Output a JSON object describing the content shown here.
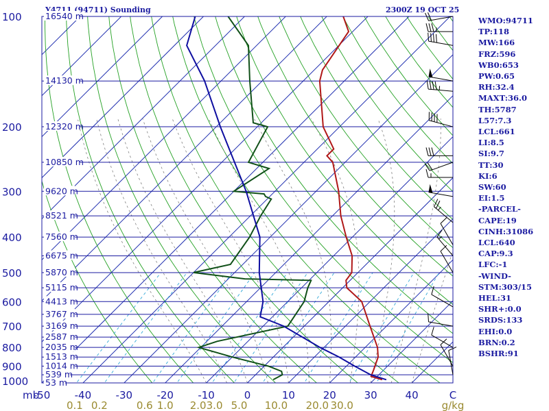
{
  "header": {
    "station": "Y4711 (94711) Sounding",
    "datetime": "2300Z 19 OCT 25"
  },
  "indices": [
    "WMO:94711",
    "TP:118",
    "MW:166",
    "FRZ:596",
    "WB0:653",
    "PW:0.65",
    "RH:32.4",
    "MAXT:36.0",
    "TH:5787",
    "L57:7.3",
    "LCL:661",
    "LI:8.5",
    "SI:9.7",
    "TT:30",
    "KI:6",
    "SW:60",
    "EI:1.5",
    "-PARCEL-",
    "CAPE:19",
    "CINH:31086",
    "LCL:640",
    "CAP:9.3",
    "LFC:-1",
    "-WIND-",
    "STM:303/15",
    "HEL:31",
    "SHR+:0.0",
    "SRDS:133",
    "EHI:0.0",
    "BRN:0.2",
    "BSHR:91"
  ],
  "chart_data": {
    "type": "line",
    "title": "Y4711 (94711) Sounding 2300Z 19 OCT 25",
    "ylabel": "mb",
    "xlabel": "C",
    "xlim": [
      -50,
      50
    ],
    "plim": [
      100,
      1000
    ],
    "pressure_ticks": [
      {
        "p": 100,
        "label": "100"
      },
      {
        "p": 200,
        "label": "200"
      },
      {
        "p": 300,
        "label": "300"
      },
      {
        "p": 400,
        "label": "400"
      },
      {
        "p": 500,
        "label": "500"
      },
      {
        "p": 600,
        "label": "600"
      },
      {
        "p": 700,
        "label": "700"
      },
      {
        "p": 800,
        "label": "800"
      },
      {
        "p": 900,
        "label": "900"
      },
      {
        "p": 1000,
        "label": "1000"
      }
    ],
    "temp_ticks": [
      {
        "t": -50,
        "label": "-50"
      },
      {
        "t": -40,
        "label": "-40"
      },
      {
        "t": -30,
        "label": "-30"
      },
      {
        "t": -20,
        "label": "-20"
      },
      {
        "t": -10,
        "label": "-10"
      },
      {
        "t": 0,
        "label": "0"
      },
      {
        "t": 10,
        "label": "10"
      },
      {
        "t": 20,
        "label": "20"
      },
      {
        "t": 30,
        "label": "30"
      },
      {
        "t": 40,
        "label": "40"
      },
      {
        "t": 50,
        "label": "C"
      }
    ],
    "mixing_ratio_label": "g/kg",
    "mixing_ratio_ticks": [
      {
        "label": "0.1",
        "t": -42
      },
      {
        "label": "0.2",
        "t": -36
      },
      {
        "label": "0.6",
        "t": -25
      },
      {
        "label": "1.0",
        "t": -20
      },
      {
        "label": "2.0",
        "t": -12
      },
      {
        "label": "3.0",
        "t": -8
      },
      {
        "label": "5.0",
        "t": -2
      },
      {
        "label": "10.0",
        "t": 7
      },
      {
        "label": "20.0",
        "t": 17
      },
      {
        "label": "30.0",
        "t": 23
      }
    ],
    "heights": [
      {
        "p": 100,
        "label": "16540 m"
      },
      {
        "p": 150,
        "label": "14130 m"
      },
      {
        "p": 200,
        "label": "12320 m"
      },
      {
        "p": 250,
        "label": "10850 m"
      },
      {
        "p": 300,
        "label": "9620 m"
      },
      {
        "p": 350,
        "label": "8521 m"
      },
      {
        "p": 400,
        "label": "7560 m"
      },
      {
        "p": 450,
        "label": "6675 m"
      },
      {
        "p": 500,
        "label": "5870 m"
      },
      {
        "p": 550,
        "label": "5115 m"
      },
      {
        "p": 600,
        "label": "4413 m"
      },
      {
        "p": 650,
        "label": "3767 m"
      },
      {
        "p": 700,
        "label": "3169 m"
      },
      {
        "p": 750,
        "label": "2587 m"
      },
      {
        "p": 800,
        "label": "2035 m"
      },
      {
        "p": 850,
        "label": "1513 m"
      },
      {
        "p": 900,
        "label": "1014 m"
      },
      {
        "p": 950,
        "label": "539 m"
      },
      {
        "p": 1000,
        "label": "53 m"
      }
    ],
    "series": [
      {
        "name": "Temperature",
        "color": "#b01818",
        "points": [
          [
            980,
            32
          ],
          [
            960,
            28.5
          ],
          [
            920,
            27.5
          ],
          [
            850,
            25.5
          ],
          [
            800,
            23
          ],
          [
            700,
            16
          ],
          [
            600,
            8
          ],
          [
            550,
            1
          ],
          [
            525,
            -1
          ],
          [
            500,
            -1.5
          ],
          [
            450,
            -5.5
          ],
          [
            400,
            -11.5
          ],
          [
            350,
            -18
          ],
          [
            300,
            -24.5
          ],
          [
            250,
            -33
          ],
          [
            240,
            -36
          ],
          [
            230,
            -36
          ],
          [
            200,
            -44
          ],
          [
            150,
            -56
          ],
          [
            140,
            -58
          ],
          [
            110,
            -61
          ],
          [
            100,
            -66
          ]
        ]
      },
      {
        "name": "Dewpoint",
        "color": "#105018",
        "points": [
          [
            980,
            5.5
          ],
          [
            950,
            6.5
          ],
          [
            930,
            5.5
          ],
          [
            900,
            1
          ],
          [
            850,
            -10
          ],
          [
            800,
            -20.5
          ],
          [
            770,
            -17.5
          ],
          [
            700,
            -4
          ],
          [
            600,
            -6
          ],
          [
            550,
            -8.5
          ],
          [
            525,
            -9.5
          ],
          [
            520,
            -26
          ],
          [
            500,
            -40
          ],
          [
            475,
            -33
          ],
          [
            400,
            -35
          ],
          [
            350,
            -37.5
          ],
          [
            315,
            -39
          ],
          [
            310,
            -41
          ],
          [
            305,
            -42
          ],
          [
            300,
            -50
          ],
          [
            260,
            -47
          ],
          [
            250,
            -53.5
          ],
          [
            200,
            -57.5
          ],
          [
            195,
            -62
          ],
          [
            150,
            -73
          ],
          [
            120,
            -82
          ],
          [
            100,
            -94
          ]
        ]
      },
      {
        "name": "Parcel",
        "color": "#0e0ea0",
        "points": [
          [
            980,
            33
          ],
          [
            950,
            28
          ],
          [
            900,
            22
          ],
          [
            850,
            16
          ],
          [
            800,
            9
          ],
          [
            700,
            -5
          ],
          [
            660,
            -13
          ],
          [
            600,
            -16
          ],
          [
            500,
            -24
          ],
          [
            400,
            -32.5
          ],
          [
            300,
            -47
          ],
          [
            200,
            -69
          ],
          [
            150,
            -84
          ],
          [
            120,
            -97
          ],
          [
            100,
            -102
          ]
        ]
      }
    ],
    "wind_barbs": [
      {
        "p": 100,
        "dir": 260,
        "spd": 20
      },
      {
        "p": 110,
        "dir": 270,
        "spd": 35
      },
      {
        "p": 120,
        "dir": 280,
        "spd": 40
      },
      {
        "p": 150,
        "dir": 280,
        "spd": 50
      },
      {
        "p": 160,
        "dir": 275,
        "spd": 45
      },
      {
        "p": 200,
        "dir": 285,
        "spd": 40
      },
      {
        "p": 240,
        "dir": 270,
        "spd": 30
      },
      {
        "p": 250,
        "dir": 250,
        "spd": 20
      },
      {
        "p": 275,
        "dir": 270,
        "spd": 15
      },
      {
        "p": 310,
        "dir": 280,
        "spd": 50
      },
      {
        "p": 365,
        "dir": 310,
        "spd": 25
      },
      {
        "p": 420,
        "dir": 330,
        "spd": 10
      },
      {
        "p": 450,
        "dir": 320,
        "spd": 15
      },
      {
        "p": 500,
        "dir": 330,
        "spd": 10
      },
      {
        "p": 620,
        "dir": 300,
        "spd": 10
      },
      {
        "p": 700,
        "dir": 280,
        "spd": 10
      },
      {
        "p": 800,
        "dir": 300,
        "spd": 10
      },
      {
        "p": 900,
        "dir": 330,
        "spd": 10
      },
      {
        "p": 950,
        "dir": 350,
        "spd": 10
      }
    ]
  }
}
